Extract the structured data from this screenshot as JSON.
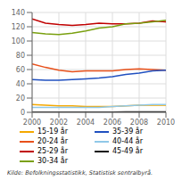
{
  "chart_data": {
    "type": "line",
    "x": [
      2000,
      2001,
      2002,
      2003,
      2004,
      2005,
      2006,
      2007,
      2008,
      2009,
      2010
    ],
    "series": [
      {
        "name": "15-19 år",
        "color": "#F5A800",
        "values": [
          11,
          10,
          9,
          9,
          8,
          8,
          8,
          9,
          10,
          10,
          10
        ]
      },
      {
        "name": "20-24 år",
        "color": "#E8501A",
        "values": [
          68,
          63,
          59,
          57,
          58,
          58,
          58,
          60,
          61,
          60,
          59
        ]
      },
      {
        "name": "25-29 år",
        "color": "#C00000",
        "values": [
          131,
          125,
          123,
          122,
          123,
          125,
          124,
          124,
          125,
          128,
          127
        ]
      },
      {
        "name": "30-34 år",
        "color": "#7AA010",
        "values": [
          112,
          110,
          109,
          111,
          114,
          118,
          120,
          124,
          125,
          127,
          129
        ]
      },
      {
        "name": "35-39 år",
        "color": "#2050C0",
        "values": [
          46,
          45,
          45,
          46,
          47,
          48,
          50,
          53,
          55,
          58,
          59
        ]
      },
      {
        "name": "40-44 år",
        "color": "#90C8E8",
        "values": [
          7,
          7,
          7,
          7,
          7,
          7,
          8,
          9,
          10,
          11,
          11
        ]
      },
      {
        "name": "45-49 år",
        "color": "#101010",
        "values": [
          0.4,
          0.4,
          0.4,
          0.4,
          0.4,
          0.4,
          0.4,
          0.5,
          0.5,
          0.5,
          0.5
        ]
      }
    ],
    "xlim": [
      2000,
      2010
    ],
    "xticks": [
      2000,
      2002,
      2004,
      2006,
      2008,
      2010
    ],
    "ylim": [
      0,
      140
    ],
    "yticks": [
      0,
      20,
      40,
      60,
      80,
      100,
      120,
      140
    ],
    "grid": true,
    "legend": "bottom",
    "annotation": "Kilde: Befolkningsstatistikk, Statistisk sentralbyrå."
  }
}
